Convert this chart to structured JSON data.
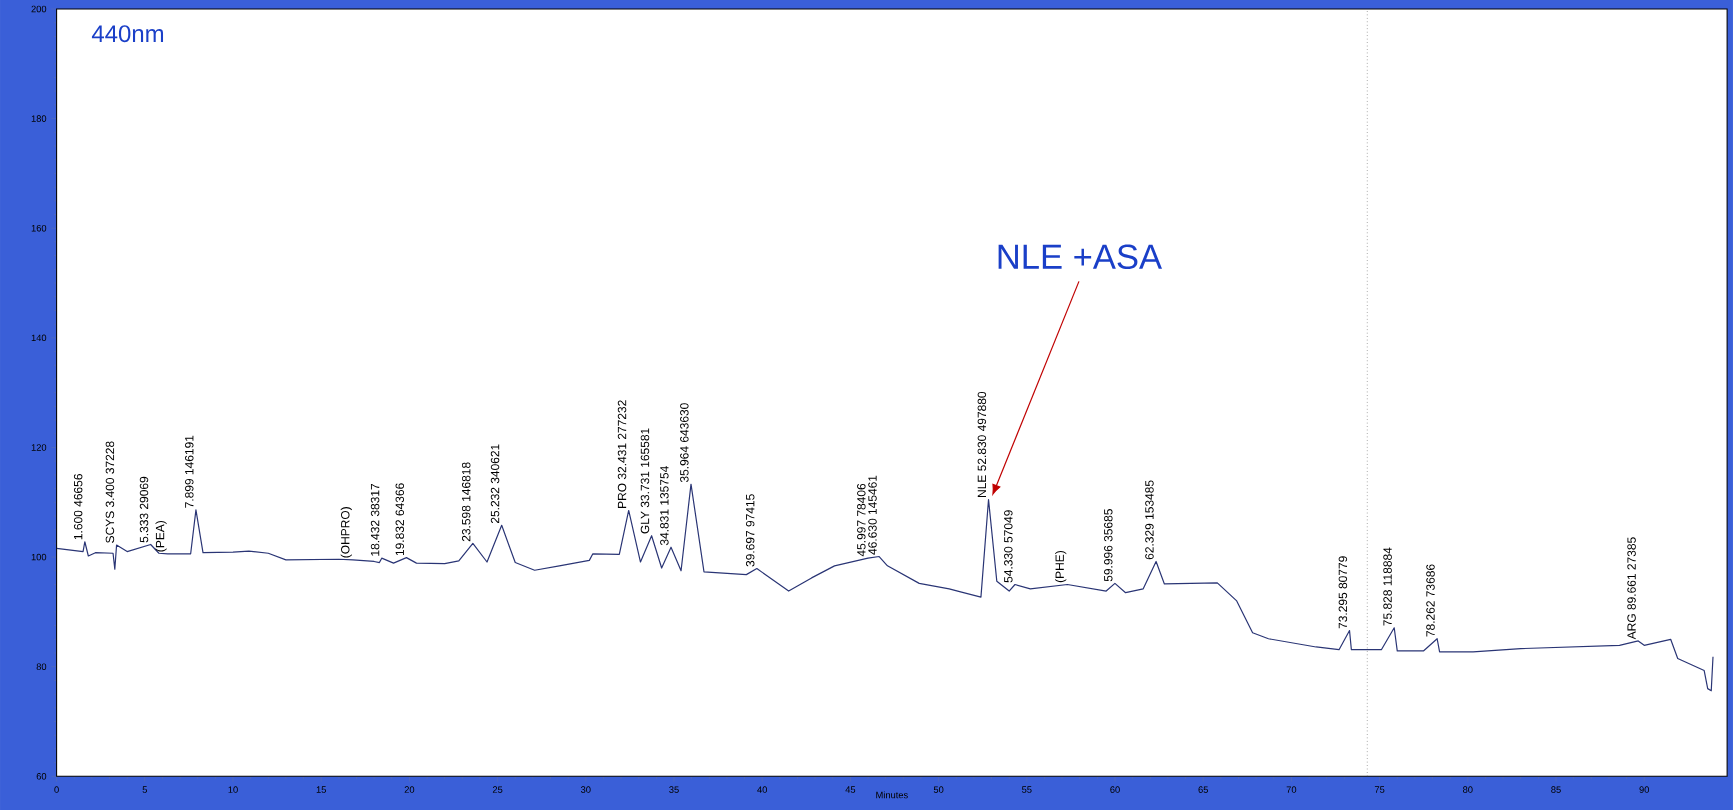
{
  "chart_data": {
    "type": "line",
    "title": "440nm",
    "xlabel": "Minutes",
    "x": [
      0,
      1.5,
      1.6,
      1.8,
      2.2,
      3.2,
      3.3,
      3.4,
      4,
      5.333,
      5.8,
      6.3,
      7.6,
      7.899,
      8.3,
      10,
      10.9,
      12,
      13,
      16,
      16.8,
      18,
      18.3,
      18.432,
      19.1,
      19.832,
      20.4,
      22,
      22.8,
      23.598,
      24.4,
      25.232,
      26,
      27.1,
      28.5,
      30.2,
      30.4,
      31.9,
      32.431,
      33.1,
      33.731,
      34.3,
      34.831,
      35.4,
      35.964,
      36.7,
      39.1,
      39.697,
      41.5,
      42.8,
      44.1,
      45.997,
      46.63,
      47.1,
      48.9,
      50.6,
      51.3,
      52.4,
      52.83,
      53.3,
      54,
      54.33,
      55.2,
      57.3,
      59.5,
      59.996,
      60.6,
      61.6,
      62.329,
      62.8,
      65.8,
      66.9,
      67.8,
      68.7,
      71.4,
      72.7,
      73.295,
      73.4,
      75.1,
      75.828,
      76,
      77.5,
      78.262,
      78.4,
      80.3,
      83,
      88.6,
      89.661,
      90,
      91.5,
      91.9,
      93.4,
      93.6,
      93.8,
      93.9
    ],
    "series": [
      {
        "color": "#2a3575",
        "values": [
          101.6,
          101,
          102.8,
          100.2,
          100.8,
          100.7,
          97.8,
          102.2,
          101,
          102.3,
          100.7,
          100.6,
          100.6,
          108.6,
          100.8,
          100.9,
          101.1,
          100.7,
          99.5,
          99.6,
          99.5,
          99.2,
          99,
          99.8,
          98.9,
          99.9,
          98.9,
          98.8,
          99.3,
          102.5,
          99.1,
          105.8,
          99,
          97.6,
          98.4,
          99.4,
          100.6,
          100.5,
          108.5,
          99.1,
          103.9,
          98,
          101.8,
          97.5,
          113.3,
          97.3,
          96.8,
          97.9,
          93.8,
          96.2,
          98.4,
          99.8,
          100.1,
          98.4,
          95.2,
          94.2,
          93.6,
          92.7,
          110.5,
          95.6,
          93.8,
          95,
          94.2,
          95,
          93.8,
          95.2,
          93.5,
          94.2,
          99.2,
          95.1,
          95.3,
          92,
          86.2,
          85.1,
          83.6,
          83.1,
          86.6,
          83.1,
          83.1,
          87.1,
          82.9,
          82.9,
          85.1,
          82.7,
          82.7,
          83.3,
          83.9,
          84.7,
          83.9,
          85,
          81.5,
          79.3,
          76,
          75.6,
          81.8
        ]
      }
    ],
    "xlim": [
      0,
      94.7
    ],
    "ylim": [
      60,
      200
    ],
    "xticks": [
      0,
      5,
      10,
      15,
      20,
      25,
      30,
      35,
      40,
      45,
      50,
      55,
      60,
      65,
      70,
      75,
      80,
      85,
      90
    ],
    "yticks": [
      60,
      80,
      100,
      120,
      140,
      160,
      180,
      200
    ],
    "marker": "none",
    "line_style": "solid",
    "grid": false,
    "ref_lines": [
      {
        "axis": "x",
        "value": 74.3,
        "color": "#777777",
        "line_style": "dotted"
      }
    ],
    "annotations": [
      "NLE +ASA",
      {
        "text": "1.600  46656",
        "x": 1.6,
        "y": 102.8
      },
      {
        "text": "SCYS 3.400  37228",
        "x": 3.4,
        "y": 102.2
      },
      {
        "text": "5.333  29069",
        "x": 5.333,
        "y": 102.3
      },
      {
        "text": "(PEA)",
        "x": 6.3,
        "y": 100.6
      },
      {
        "text": "7.899  146191",
        "x": 7.899,
        "y": 108.6
      },
      {
        "text": "(OHPRO)",
        "x": 16.8,
        "y": 99.5
      },
      {
        "text": "18.432  38317",
        "x": 18.432,
        "y": 99.8
      },
      {
        "text": "19.832  64366",
        "x": 19.832,
        "y": 99.9
      },
      {
        "text": "23.598  146818",
        "x": 23.598,
        "y": 102.5
      },
      {
        "text": "25.232  340621",
        "x": 25.232,
        "y": 105.8
      },
      {
        "text": "PRO 32.431  277232",
        "x": 32.431,
        "y": 108.5
      },
      {
        "text": "GLY 33.731  165581",
        "x": 33.731,
        "y": 103.9
      },
      {
        "text": "34.831  135754",
        "x": 34.831,
        "y": 101.8
      },
      {
        "text": "35.964  643630",
        "x": 35.964,
        "y": 113.3
      },
      {
        "text": "39.697  97415",
        "x": 39.697,
        "y": 97.9
      },
      {
        "text": "45.997  78406",
        "x": 45.997,
        "y": 99.8
      },
      {
        "text": "46.630  145461",
        "x": 46.63,
        "y": 100.1
      },
      {
        "text": "NLE 52.830  497880",
        "x": 52.83,
        "y": 110.5
      },
      {
        "text": "54.330  57049",
        "x": 54.33,
        "y": 95
      },
      {
        "text": "(PHE)",
        "x": 57.3,
        "y": 95
      },
      {
        "text": "59.996  35685",
        "x": 59.996,
        "y": 95.2
      },
      {
        "text": "62.329  153485",
        "x": 62.329,
        "y": 99.2
      },
      {
        "text": "73.295  80779",
        "x": 73.295,
        "y": 86.6
      },
      {
        "text": "75.828  118884",
        "x": 75.828,
        "y": 87.1
      },
      {
        "text": "78.262  73686",
        "x": 78.262,
        "y": 85.1
      },
      {
        "text": "ARG 89.661  27385",
        "x": 89.661,
        "y": 84.7
      }
    ]
  }
}
